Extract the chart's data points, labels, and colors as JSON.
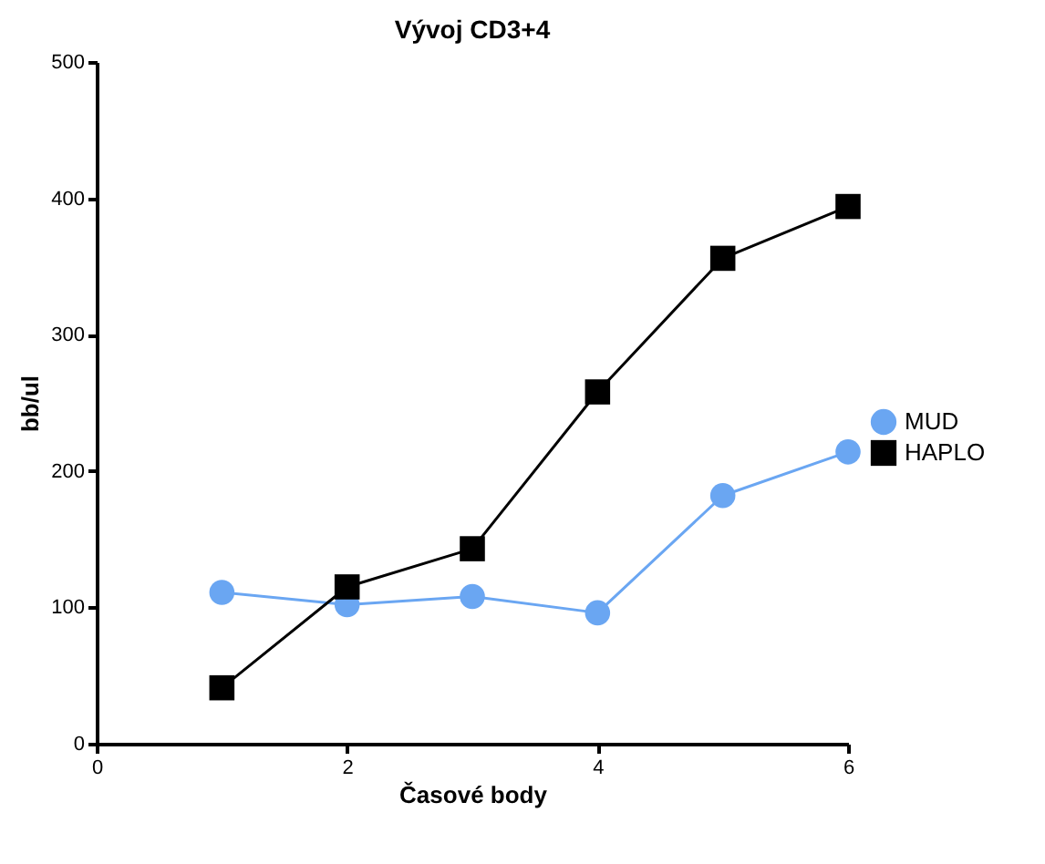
{
  "chart_data": {
    "type": "line",
    "title": "Vývoj CD3+4",
    "xlabel": "Časové body",
    "ylabel": "bb/ul",
    "x": [
      1,
      2,
      3,
      4,
      5,
      6
    ],
    "series": [
      {
        "name": "MUD",
        "color": "#6aa6f2",
        "marker": "circle",
        "values": [
          111,
          102,
          108,
          96,
          182,
          214
        ]
      },
      {
        "name": "HAPLO",
        "color": "#000000",
        "marker": "square",
        "values": [
          41,
          115,
          143,
          258,
          356,
          394
        ]
      }
    ],
    "xlim": [
      0,
      6
    ],
    "xticks": [
      0,
      2,
      4,
      6
    ],
    "ylim": [
      0,
      500
    ],
    "yticks": [
      0,
      100,
      200,
      300,
      400,
      500
    ],
    "grid": false,
    "legend": "right"
  }
}
